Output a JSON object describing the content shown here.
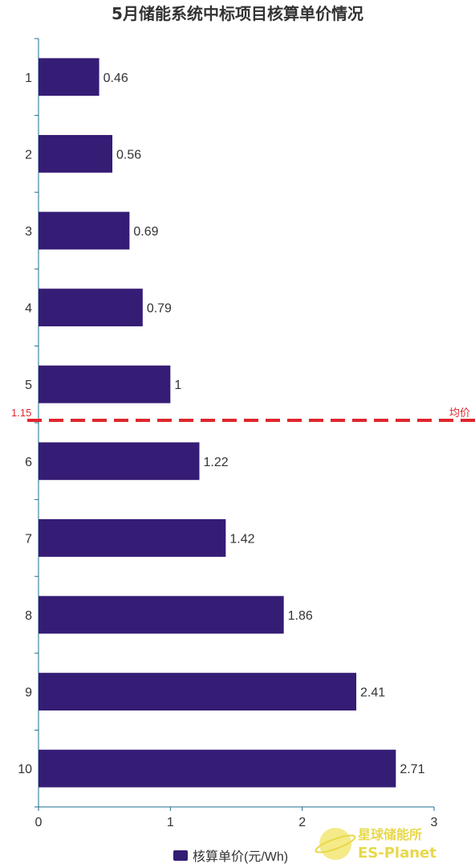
{
  "chart_data": {
    "type": "bar",
    "orientation": "horizontal",
    "title": "5月储能系统中标项目核算单价情况",
    "categories": [
      "1",
      "2",
      "3",
      "4",
      "5",
      "6",
      "7",
      "8",
      "9",
      "10"
    ],
    "series": [
      {
        "name": "核算单价(元/Wh)",
        "values": [
          0.46,
          0.56,
          0.69,
          0.79,
          1,
          1.22,
          1.42,
          1.86,
          2.41,
          2.71
        ]
      }
    ],
    "value_labels": [
      "0.46",
      "0.56",
      "0.69",
      "0.79",
      "1",
      "1.22",
      "1.42",
      "1.86",
      "2.41",
      "2.71"
    ],
    "xlim": [
      0,
      3
    ],
    "x_ticks": [
      "0",
      "1",
      "2",
      "3"
    ],
    "reference_line": {
      "value": 1.15,
      "value_label": "1.15",
      "label": "均价",
      "color": "#e0262d",
      "style": "dashed"
    },
    "bar_color": "#351c75",
    "grid": false,
    "legend": {
      "position": "bottom-center"
    }
  },
  "watermark": {
    "cn": "星球储能所",
    "en": "ES-Planet"
  }
}
